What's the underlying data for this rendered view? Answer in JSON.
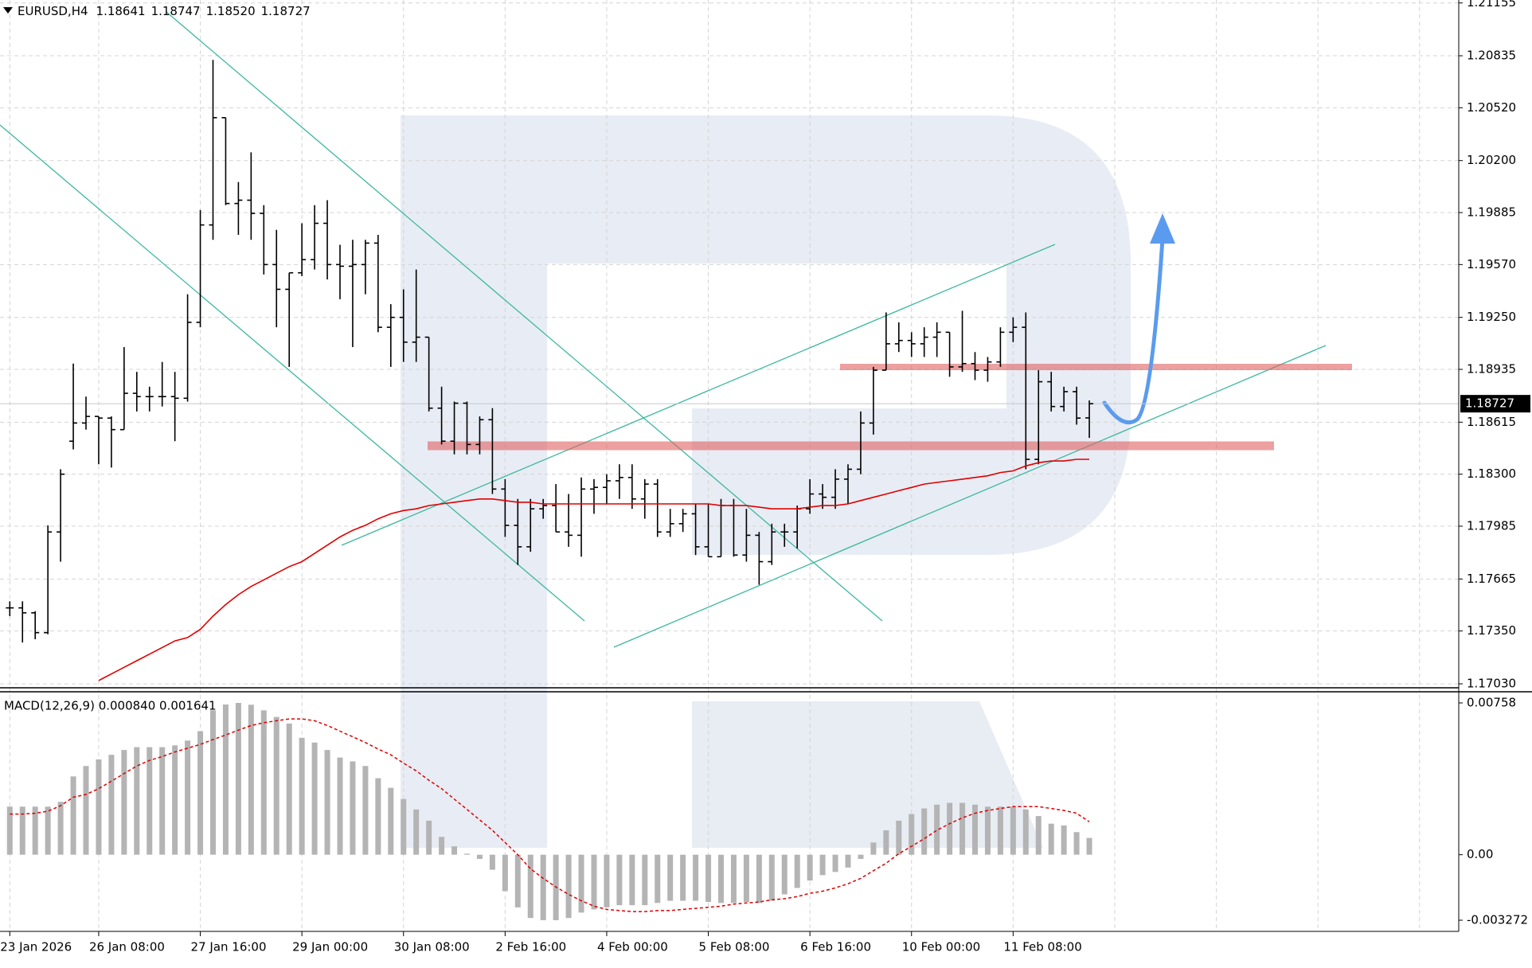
{
  "chart_data": [
    {
      "type": "ohlc",
      "title": "EURUSD,H4",
      "ohlc_label": [
        "1.18641",
        "1.18747",
        "1.18520",
        "1.18727"
      ],
      "categories": [
        "23 Jan 2026",
        null,
        null,
        null,
        null,
        null,
        null,
        "26 Jan 08:00",
        null,
        null,
        null,
        null,
        null,
        null,
        null,
        "27 Jan 16:00",
        null,
        null,
        null,
        null,
        null,
        null,
        null,
        "29 Jan 00:00",
        null,
        null,
        null,
        null,
        null,
        null,
        null,
        "30 Jan 08:00",
        null,
        null,
        null,
        null,
        null,
        null,
        null,
        "2 Feb 16:00",
        null,
        null,
        null,
        null,
        null,
        null,
        null,
        "4 Feb 00:00",
        null,
        null,
        null,
        null,
        null,
        null,
        null,
        "5 Feb 08:00",
        null,
        null,
        null,
        null,
        null,
        null,
        null,
        "6 Feb 16:00",
        null,
        null,
        null,
        null,
        null,
        null,
        null,
        "10 Feb 00:00",
        null,
        null,
        null,
        null,
        null,
        null,
        null,
        "11 Feb 08:00",
        null,
        null,
        null,
        null,
        null,
        null
      ],
      "open": [
        1.1749,
        1.1749,
        1.1746,
        1.1734,
        1.1795,
        1.185,
        1.1861,
        1.1865,
        1.1864,
        1.1857,
        1.1879,
        1.1877,
        1.1877,
        1.1877,
        1.1876,
        1.1922,
        1.1981,
        1.2046,
        1.1994,
        1.1996,
        1.1988,
        1.1957,
        1.1942,
        1.1952,
        1.196,
        1.1982,
        1.1957,
        1.1956,
        1.1957,
        1.197,
        1.1919,
        1.1925,
        1.191,
        1.1913,
        1.187,
        1.185,
        1.1873,
        1.1848,
        1.1863,
        1.1821,
        1.1799,
        1.1786,
        1.1809,
        1.1811,
        1.1795,
        1.1793,
        1.1821,
        1.1822,
        1.1826,
        1.1828,
        1.1815,
        1.1824,
        1.1795,
        1.18,
        1.1806,
        1.1786,
        1.178,
        1.1811,
        1.1781,
        1.1793,
        1.1777,
        1.1795,
        1.1795,
        1.1809,
        1.1818,
        1.1816,
        1.1827,
        1.1833,
        1.1861,
        1.1893,
        1.1909,
        1.1911,
        1.1909,
        1.1913,
        1.1916,
        1.1895,
        1.1897,
        1.1893,
        1.1898,
        1.1916,
        1.1919,
        1.1839,
        1.1886,
        1.1871,
        1.188,
        1.18641
      ],
      "high": [
        1.1753,
        1.1753,
        1.1747,
        1.1799,
        1.1833,
        1.1897,
        1.1877,
        1.1865,
        1.1865,
        1.1907,
        1.1892,
        1.1883,
        1.1898,
        1.1892,
        1.1939,
        1.199,
        1.2081,
        1.2046,
        1.2007,
        1.2025,
        1.1993,
        1.1978,
        1.1952,
        1.1982,
        1.1993,
        1.1996,
        1.1969,
        1.1972,
        1.1972,
        1.1975,
        1.1933,
        1.1942,
        1.1954,
        1.1913,
        1.1883,
        1.1874,
        1.1874,
        1.1865,
        1.187,
        1.1827,
        1.1815,
        1.1815,
        1.1815,
        1.1824,
        1.1818,
        1.1828,
        1.1827,
        1.183,
        1.1836,
        1.1836,
        1.1827,
        1.1827,
        1.1809,
        1.1809,
        1.1812,
        1.1812,
        1.1815,
        1.1815,
        1.1809,
        1.1795,
        1.18,
        1.18,
        1.1811,
        1.1827,
        1.1824,
        1.1833,
        1.1836,
        1.1868,
        1.1895,
        1.1928,
        1.1922,
        1.1916,
        1.1919,
        1.1922,
        1.1916,
        1.1929,
        1.1904,
        1.1901,
        1.1919,
        1.1925,
        1.1928,
        1.1893,
        1.1892,
        1.1883,
        1.1883,
        1.18747
      ],
      "low": [
        1.1744,
        1.1728,
        1.173,
        1.1733,
        1.1777,
        1.1845,
        1.1857,
        1.1836,
        1.1834,
        1.1857,
        1.1868,
        1.1868,
        1.1871,
        1.185,
        1.1874,
        1.1919,
        1.1972,
        1.1993,
        1.1975,
        1.1972,
        1.1951,
        1.1919,
        1.1895,
        1.195,
        1.1954,
        1.1948,
        1.1936,
        1.1907,
        1.1939,
        1.1916,
        1.1895,
        1.1898,
        1.1898,
        1.1868,
        1.1848,
        1.1842,
        1.1842,
        1.1842,
        1.1818,
        1.1792,
        1.1775,
        1.1783,
        1.1803,
        1.1795,
        1.1786,
        1.178,
        1.1806,
        1.1812,
        1.1815,
        1.1809,
        1.1803,
        1.1792,
        1.1792,
        1.1795,
        1.1781,
        1.178,
        1.178,
        1.178,
        1.1777,
        1.1763,
        1.1775,
        1.1786,
        1.1785,
        1.1806,
        1.1809,
        1.1809,
        1.1812,
        1.183,
        1.1854,
        1.1893,
        1.1904,
        1.1901,
        1.1901,
        1.1901,
        1.1889,
        1.1892,
        1.1887,
        1.1886,
        1.1895,
        1.191,
        1.1833,
        1.1836,
        1.1868,
        1.1868,
        1.186,
        1.1852
      ],
      "close": [
        1.1749,
        1.1746,
        1.1734,
        1.1795,
        1.183,
        1.1861,
        1.1865,
        1.1864,
        1.1857,
        1.1879,
        1.1877,
        1.1877,
        1.1877,
        1.1876,
        1.1922,
        1.1981,
        1.2046,
        1.1994,
        1.1996,
        1.1988,
        1.1957,
        1.1942,
        1.1952,
        1.196,
        1.1982,
        1.1957,
        1.1956,
        1.1957,
        1.197,
        1.1919,
        1.1925,
        1.191,
        1.1913,
        1.187,
        1.185,
        1.1873,
        1.1848,
        1.1863,
        1.1821,
        1.1799,
        1.1786,
        1.1809,
        1.1811,
        1.1795,
        1.1793,
        1.1821,
        1.1822,
        1.1826,
        1.1828,
        1.1815,
        1.1824,
        1.1795,
        1.18,
        1.1806,
        1.1786,
        1.178,
        1.1811,
        1.1781,
        1.1793,
        1.1777,
        1.1795,
        1.1795,
        1.1809,
        1.1818,
        1.1816,
        1.1827,
        1.1833,
        1.1861,
        1.1893,
        1.1909,
        1.1911,
        1.1909,
        1.1913,
        1.1916,
        1.1895,
        1.1897,
        1.1893,
        1.1898,
        1.1916,
        1.1919,
        1.1839,
        1.1886,
        1.1871,
        1.188,
        1.1864,
        1.18727
      ],
      "bar_color": "#000000",
      "moving_average": {
        "color": "#e00000",
        "values": [
          null,
          null,
          null,
          null,
          null,
          null,
          null,
          1.1705,
          1.1709,
          1.1713,
          1.1717,
          1.1721,
          1.1725,
          1.1729,
          1.1731,
          1.1736,
          1.1744,
          1.1751,
          1.1757,
          1.1762,
          1.1766,
          1.177,
          1.1774,
          1.1777,
          1.1782,
          1.1787,
          1.1792,
          1.1796,
          1.1799,
          1.1803,
          1.1806,
          1.1808,
          1.1809,
          1.1811,
          1.1812,
          1.1813,
          1.1814,
          1.1815,
          1.1815,
          1.1814,
          1.1813,
          1.1813,
          1.1812,
          1.1812,
          1.1812,
          1.1812,
          1.1812,
          1.1812,
          1.1812,
          1.1812,
          1.1812,
          1.1812,
          1.1812,
          1.1812,
          1.1812,
          1.1812,
          1.1811,
          1.1811,
          1.1811,
          1.181,
          1.1809,
          1.1809,
          1.1809,
          1.181,
          1.1811,
          1.1811,
          1.1812,
          1.1814,
          1.1816,
          1.1818,
          1.182,
          1.1822,
          1.1824,
          1.1825,
          1.1826,
          1.1827,
          1.1828,
          1.1829,
          1.1831,
          1.1832,
          1.1835,
          1.1837,
          1.1838,
          1.1838,
          1.1839,
          1.1839
        ]
      },
      "current_price": {
        "value": 1.18727,
        "label": "1.18727"
      },
      "ylim": [
        1.1703,
        1.21155
      ],
      "yticks": [
        1.21155,
        1.20835,
        {
          "value": 1.2052,
          "label": "1.20520"
        },
        {
          "value": 1.202,
          "label": "1.20200"
        },
        1.19885,
        {
          "value": 1.1957,
          "label": "1.19570"
        },
        {
          "value": 1.1925,
          "label": "1.19250"
        },
        1.18935,
        1.18615,
        {
          "value": 1.183,
          "label": "1.18300"
        },
        1.17985,
        1.17665,
        {
          "value": 1.1735,
          "label": "1.17350"
        },
        {
          "value": 1.1703,
          "label": "1.17030"
        }
      ],
      "grid": true
    },
    {
      "type": "macd",
      "title": "MACD(12,26,9) 0.000840 0.001641",
      "histogram": {
        "color": "#b4b4b4",
        "values": [
          0.0024,
          0.0024,
          0.0024,
          0.0024,
          0.00264,
          0.00391,
          0.00443,
          0.00476,
          0.00499,
          0.00523,
          0.00537,
          0.00537,
          0.00537,
          0.00546,
          0.0057,
          0.00617,
          0.00721,
          0.0075,
          0.00758,
          0.00749,
          0.00721,
          0.00688,
          0.00655,
          0.00584,
          0.0056,
          0.00523,
          0.00485,
          0.00466,
          0.00443,
          0.00382,
          0.00334,
          0.00278,
          0.00226,
          0.0017,
          0.00089,
          0.00042,
          5e-05,
          -0.00021,
          -0.00075,
          -0.00182,
          -0.00263,
          -0.00316,
          -0.00327,
          -0.00327,
          -0.00316,
          -0.00289,
          -0.00273,
          -0.00263,
          -0.00252,
          -0.00252,
          -0.00252,
          -0.00241,
          -0.0023,
          -0.0023,
          -0.0023,
          -0.00236,
          -0.00241,
          -0.00241,
          -0.00236,
          -0.00241,
          -0.0023,
          -0.00198,
          -0.00166,
          -0.00129,
          -0.00102,
          -0.00086,
          -0.00064,
          -0.00021,
          0.00061,
          0.00122,
          0.0017,
          0.00203,
          0.00231,
          0.0025,
          0.00259,
          0.00259,
          0.0025,
          0.0024,
          0.0024,
          0.0024,
          0.00226,
          0.00193,
          0.00155,
          0.00146,
          0.00113,
          0.00084
        ]
      },
      "signal": {
        "color": "#e00000",
        "values": [
          0.00203,
          0.00203,
          0.00207,
          0.00217,
          0.00245,
          0.00287,
          0.00301,
          0.0033,
          0.00367,
          0.00405,
          0.00443,
          0.00471,
          0.0049,
          0.00513,
          0.00532,
          0.00551,
          0.00575,
          0.00598,
          0.00622,
          0.00645,
          0.00659,
          0.00669,
          0.00678,
          0.00678,
          0.00669,
          0.00645,
          0.00617,
          0.00589,
          0.0056,
          0.00528,
          0.00499,
          0.00457,
          0.00419,
          0.00372,
          0.0033,
          0.00278,
          0.00226,
          0.00174,
          0.00122,
          0.00061,
          0.0,
          -0.0007,
          -0.00118,
          -0.00161,
          -0.00198,
          -0.0023,
          -0.00257,
          -0.00273,
          -0.00279,
          -0.00284,
          -0.00284,
          -0.00279,
          -0.00279,
          -0.00273,
          -0.00268,
          -0.00263,
          -0.00257,
          -0.00247,
          -0.00241,
          -0.00236,
          -0.00225,
          -0.0022,
          -0.00209,
          -0.00193,
          -0.00182,
          -0.00166,
          -0.00145,
          -0.00118,
          -0.0008,
          -0.00043,
          5e-05,
          0.00042,
          0.0008,
          0.00122,
          0.00155,
          0.00184,
          0.00207,
          0.00221,
          0.00231,
          0.0024,
          0.0024,
          0.0024,
          0.00231,
          0.00221,
          0.00207,
          0.001641
        ]
      },
      "ylim": [
        -0.003272,
        0.00758
      ],
      "yticks": [
        0.00758,
        {
          "value": 0,
          "label": "0.00"
        },
        -0.003272
      ]
    }
  ]
}
